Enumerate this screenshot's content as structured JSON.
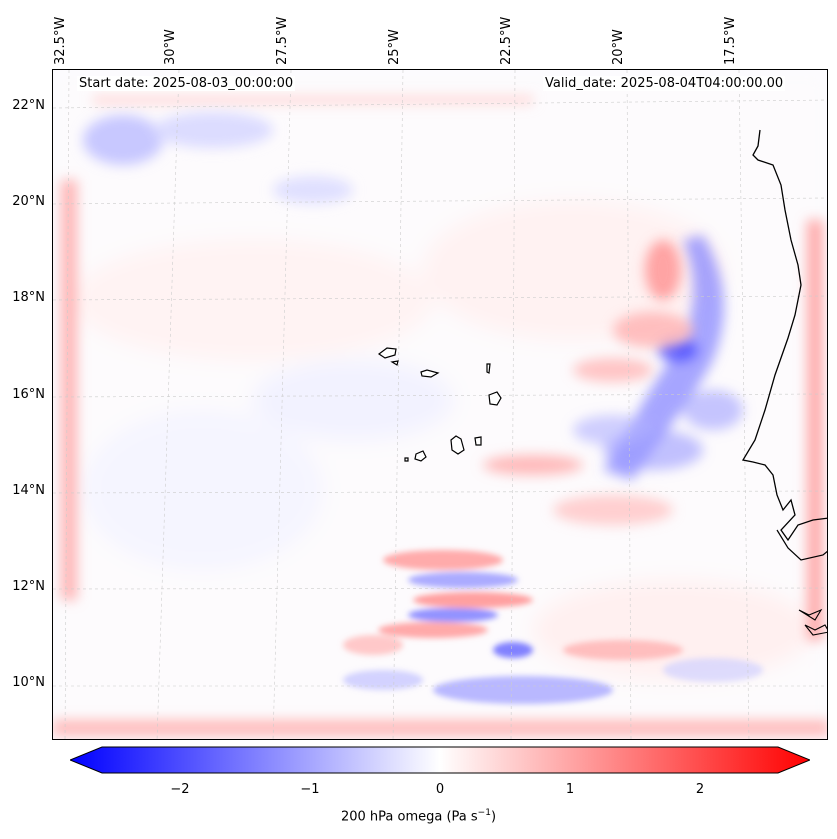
{
  "map": {
    "start_label": "Start date: 2025-08-03_00:00:00",
    "valid_label": "Valid_date: 2025-08-04T04:00:00.00",
    "longitude_labels": [
      "32.5°W",
      "30°W",
      "27.5°W",
      "25°W",
      "22.5°W",
      "20°W",
      "17.5°W"
    ],
    "latitude_labels": [
      "22°N",
      "20°N",
      "18°N",
      "16°N",
      "14°N",
      "12°N",
      "10°N"
    ],
    "field": "200 hPa omega",
    "colors": {
      "negative": "#0000ff",
      "zero": "#ffffff",
      "positive": "#ff0000",
      "coast": "#000000"
    }
  },
  "colorbar": {
    "ticks": [
      "−2",
      "−1",
      "0",
      "1",
      "2"
    ],
    "tick_values": [
      -2,
      -1,
      0,
      1,
      2
    ],
    "range": [
      -2.6,
      2.6
    ],
    "label_main": "200 hPa omega (Pa s",
    "label_sup": "−1",
    "label_end": ")"
  }
}
